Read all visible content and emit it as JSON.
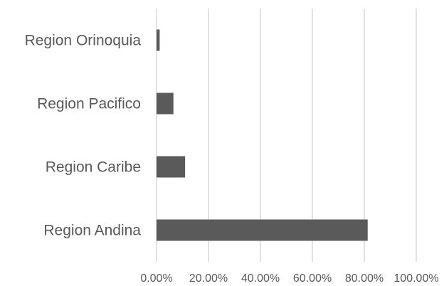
{
  "chart_data": {
    "type": "bar",
    "orientation": "horizontal",
    "categories": [
      "Region Orinoquia",
      "Region Pacifico",
      "Region Caribe",
      "Region Andina"
    ],
    "values": [
      1.2,
      6.5,
      11.0,
      81.3
    ],
    "x_ticks": [
      "0.00%",
      "20.00%",
      "40.00%",
      "60.00%",
      "80.00%",
      "100.00%"
    ],
    "xlim": [
      0,
      100
    ],
    "grid": true,
    "bar_color": "#5a5a5a",
    "grid_color": "#d9d9d9",
    "label_color": "#595959"
  }
}
